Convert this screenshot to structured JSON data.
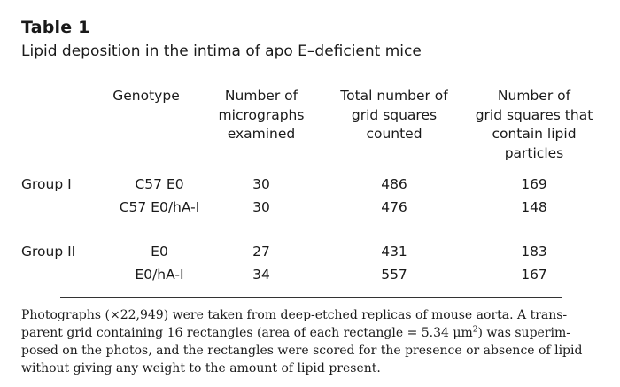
{
  "table": {
    "title": "Table 1",
    "caption": "Lipid deposition in the intima of apo E–deficient mice",
    "headers": {
      "genotype": "Genotype",
      "micrographs": "Number of\nmicrographs\nexamined",
      "total_squares": "Total number of\ngrid squares\ncounted",
      "lipid_squares": "Number of\ngrid squares that\ncontain lipid\nparticles"
    },
    "groups": [
      {
        "label": "Group I",
        "rows": [
          {
            "genotype": "C57 E0",
            "micrographs": "30",
            "total": "486",
            "lipid": "169"
          },
          {
            "genotype": "C57 E0/hA-I",
            "micrographs": "30",
            "total": "476",
            "lipid": "148"
          }
        ]
      },
      {
        "label": "Group II",
        "rows": [
          {
            "genotype": "E0",
            "micrographs": "27",
            "total": "431",
            "lipid": "183"
          },
          {
            "genotype": "E0/hA-I",
            "micrographs": "34",
            "total": "557",
            "lipid": "167"
          }
        ]
      }
    ],
    "footnote": {
      "line1": "Photographs (×22,949) were taken from deep-etched replicas of mouse aorta. A trans-",
      "line2_pre": "parent grid containing 16 rectangles (area of each rectangle = 5.34 μm",
      "line2_sup": "2",
      "line2_post": ") was superim-",
      "line3": "posed on the photos, and the rectangles were scored for the presence or absence of lipid",
      "line4": "without giving any weight to the amount of lipid present."
    }
  }
}
